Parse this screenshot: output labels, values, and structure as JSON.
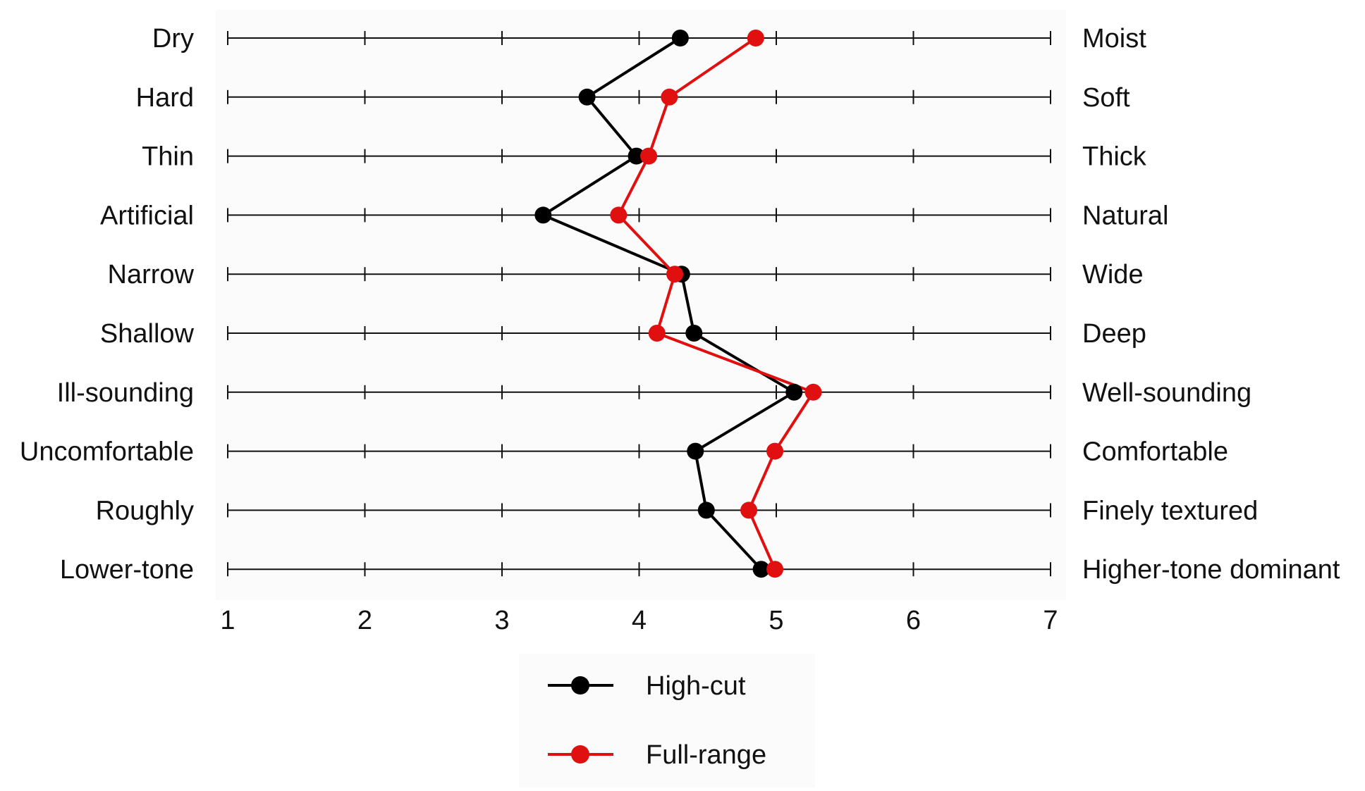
{
  "chart_data": {
    "type": "line",
    "orientation": "semantic-differential",
    "xlim": [
      1,
      7
    ],
    "x_ticks": [
      "1",
      "2",
      "3",
      "4",
      "5",
      "6",
      "7"
    ],
    "grid": false,
    "legend_position": "bottom-center",
    "left_labels": [
      "Dry",
      "Hard",
      "Thin",
      "Artificial",
      "Narrow",
      "Shallow",
      "Ill-sounding",
      "Uncomfortable",
      "Roughly",
      "Lower-tone"
    ],
    "right_labels": [
      "Moist",
      "Soft",
      "Thick",
      "Natural",
      "Wide",
      "Deep",
      "Well-sounding",
      "Comfortable",
      "Finely textured",
      "Higher-tone dominant"
    ],
    "series": [
      {
        "name": "High-cut",
        "color": "#000000",
        "values": [
          4.3,
          3.62,
          3.98,
          3.3,
          4.31,
          4.4,
          5.13,
          4.41,
          4.49,
          4.89
        ]
      },
      {
        "name": "Full-range",
        "color": "#e01010",
        "values": [
          4.85,
          4.22,
          4.07,
          3.85,
          4.26,
          4.13,
          5.27,
          4.99,
          4.8,
          4.99
        ]
      }
    ]
  }
}
